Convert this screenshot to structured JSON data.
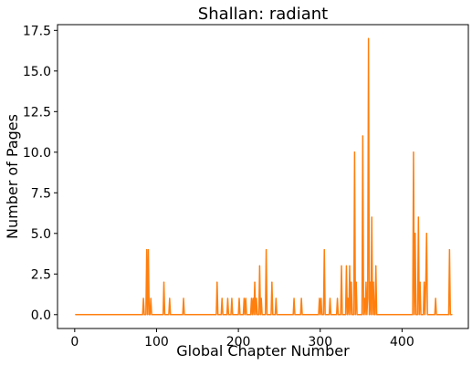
{
  "chart_data": {
    "type": "line",
    "title": "Shallan: radiant",
    "xlabel": "Global Chapter Number",
    "ylabel": "Number of Pages",
    "xlim": [
      -21,
      481
    ],
    "ylim": [
      -0.855,
      17.855
    ],
    "xticks": [
      "0",
      "100",
      "200",
      "300",
      "400"
    ],
    "yticks": [
      "0.0",
      "2.5",
      "5.0",
      "7.5",
      "10.0",
      "12.5",
      "15.0",
      "17.5"
    ],
    "grid": false,
    "legend": "none",
    "line_color": "#ff7f0e",
    "series": [
      {
        "x": [
          1,
          83,
          84,
          85,
          87,
          88,
          89,
          90,
          91,
          92,
          93,
          94,
          95,
          108,
          109,
          110,
          115,
          116,
          117,
          132,
          133,
          134,
          173,
          174,
          175,
          179,
          180,
          181,
          186,
          187,
          188,
          191,
          192,
          193,
          200,
          201,
          202,
          206,
          207,
          208,
          209,
          210,
          211,
          215,
          216,
          217,
          218,
          219,
          220,
          221,
          222,
          223,
          225,
          226,
          227,
          228,
          229,
          233,
          234,
          235,
          240,
          241,
          242,
          245,
          246,
          247,
          267,
          268,
          269,
          276,
          277,
          278,
          298,
          299,
          300,
          301,
          302,
          304,
          305,
          306,
          311,
          312,
          313,
          320,
          321,
          322,
          325,
          326,
          327,
          331,
          332,
          333,
          334,
          335,
          336,
          337,
          338,
          339,
          341,
          342,
          343,
          344,
          345,
          346,
          351,
          352,
          353,
          354,
          355,
          356,
          357,
          358,
          359,
          360,
          361,
          362,
          363,
          364,
          365,
          366,
          367,
          368,
          369,
          370,
          413,
          414,
          415,
          416,
          417,
          418,
          419,
          420,
          421,
          422,
          423,
          426,
          427,
          428,
          429,
          430,
          431,
          432,
          433,
          434,
          440,
          441,
          442,
          457,
          458,
          459,
          461
        ],
        "y": [
          0,
          0,
          1,
          0,
          0,
          4,
          0,
          4,
          0,
          0,
          1,
          0,
          0,
          0,
          2,
          0,
          0,
          1,
          0,
          0,
          1,
          0,
          0,
          2,
          0,
          0,
          1,
          0,
          0,
          1,
          0,
          0,
          1,
          0,
          0,
          1,
          0,
          0,
          1,
          0,
          1,
          0,
          0,
          0,
          1,
          0,
          1,
          0,
          2,
          0,
          1,
          0,
          0,
          3,
          0,
          1,
          0,
          0,
          4,
          0,
          0,
          2,
          0,
          0,
          1,
          0,
          0,
          1,
          0,
          0,
          1,
          0,
          0,
          1,
          0,
          1,
          0,
          0,
          4,
          0,
          0,
          1,
          0,
          0,
          1,
          0,
          0,
          3,
          0,
          0,
          3,
          0,
          1,
          0,
          3,
          0,
          2,
          0,
          0,
          10,
          0,
          2,
          0,
          0,
          0,
          11,
          0,
          1,
          0,
          2,
          0,
          1,
          17,
          0,
          2,
          0,
          6,
          0,
          2,
          0,
          0,
          3,
          0,
          0,
          0,
          10,
          0,
          5,
          0,
          0,
          0,
          6,
          0,
          2,
          0,
          0,
          2,
          0,
          2,
          5,
          0,
          0,
          0,
          0,
          0,
          1,
          0,
          0,
          4,
          0,
          0
        ]
      }
    ]
  }
}
